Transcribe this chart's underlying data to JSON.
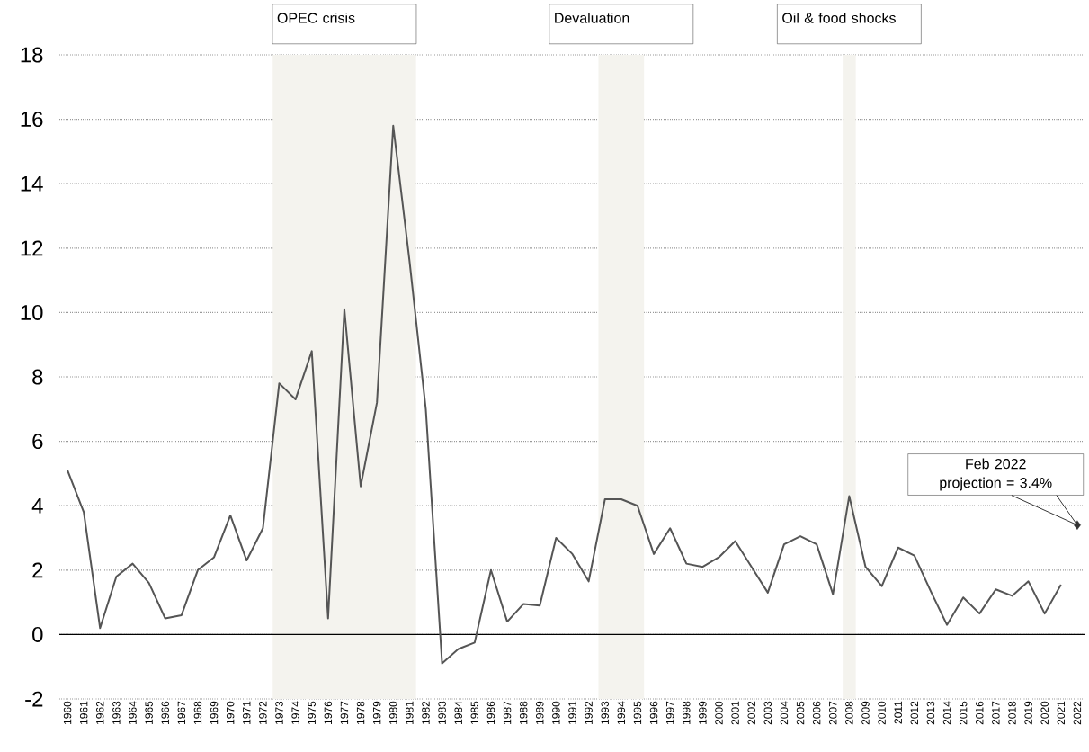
{
  "chart_data": {
    "type": "line",
    "categories": [
      "1960",
      "1961",
      "1962",
      "1963",
      "1964",
      "1965",
      "1966",
      "1967",
      "1968",
      "1969",
      "1970",
      "1971",
      "1972",
      "1973",
      "1974",
      "1975",
      "1976",
      "1977",
      "1978",
      "1979",
      "1980",
      "1981",
      "1982",
      "1983",
      "1984",
      "1985",
      "1986",
      "1987",
      "1988",
      "1989",
      "1990",
      "1991",
      "1992",
      "1993",
      "1994",
      "1995",
      "1996",
      "1997",
      "1998",
      "1999",
      "2000",
      "2001",
      "2002",
      "2003",
      "2004",
      "2005",
      "2006",
      "2007",
      "2008",
      "2009",
      "2010",
      "2011",
      "2012",
      "2013",
      "2014",
      "2015",
      "2016",
      "2017",
      "2018",
      "2019",
      "2020",
      "2021",
      "2022"
    ],
    "series": [
      {
        "color": "#555555",
        "values": [
          5.1,
          3.8,
          0.2,
          1.8,
          2.2,
          1.6,
          0.5,
          0.6,
          2.0,
          2.4,
          3.7,
          2.3,
          3.3,
          7.8,
          7.3,
          8.8,
          0.5,
          10.1,
          4.6,
          7.2,
          15.8,
          11.6,
          7.0,
          -0.9,
          -0.45,
          -0.25,
          2.0,
          0.4,
          0.95,
          0.9,
          3.0,
          2.5,
          1.65,
          4.2,
          4.2,
          4.0,
          2.5,
          3.3,
          2.2,
          2.1,
          2.4,
          2.9,
          2.1,
          1.3,
          2.8,
          3.05,
          2.8,
          1.25,
          4.3,
          2.1,
          1.5,
          2.7,
          2.45,
          1.35,
          0.3,
          1.15,
          0.65,
          1.4,
          1.2,
          1.65,
          0.65,
          1.55,
          null
        ]
      },
      {
        "type": "scatter",
        "marker": "diamond",
        "color": "#333333",
        "values": [
          null,
          null,
          null,
          null,
          null,
          null,
          null,
          null,
          null,
          null,
          null,
          null,
          null,
          null,
          null,
          null,
          null,
          null,
          null,
          null,
          null,
          null,
          null,
          null,
          null,
          null,
          null,
          null,
          null,
          null,
          null,
          null,
          null,
          null,
          null,
          null,
          null,
          null,
          null,
          null,
          null,
          null,
          null,
          null,
          null,
          null,
          null,
          null,
          null,
          null,
          null,
          null,
          null,
          null,
          null,
          null,
          null,
          null,
          null,
          null,
          null,
          null,
          3.4
        ]
      }
    ],
    "ylim": [
      -2,
      18
    ],
    "yticks": [
      -2,
      0,
      2,
      4,
      6,
      8,
      10,
      12,
      14,
      16,
      18
    ],
    "grid": "y",
    "ref_lines": [
      {
        "axis": "y",
        "value": 0,
        "color": "#000000"
      }
    ],
    "bands": [
      {
        "axis": "x",
        "from": "1973",
        "to": "1981",
        "label": "OPEC crisis",
        "color": "#f4f3ee"
      },
      {
        "axis": "x",
        "from": "1993",
        "to": "1995",
        "label": "Devaluation",
        "color": "#f4f3ee"
      },
      {
        "axis": "x",
        "from": "2008",
        "to": "2008",
        "label": "Oil & food shocks",
        "color": "#f4f3ee"
      }
    ],
    "annotations": [
      {
        "text": "Feb 2022 projection = 3.4%",
        "x": "2022",
        "y": 3.4
      }
    ]
  }
}
